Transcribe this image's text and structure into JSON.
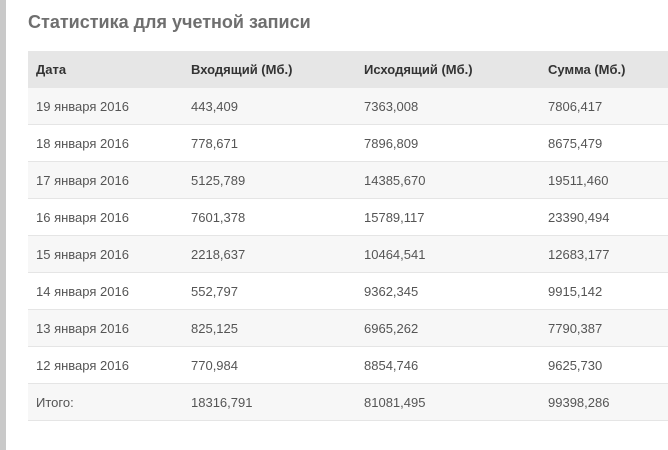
{
  "page": {
    "title": "Статистика для учетной записи"
  },
  "table": {
    "headers": [
      "Дата",
      "Входящий (Мб.)",
      "Исходящий (Мб.)",
      "Сумма (Мб.)"
    ],
    "rows": [
      [
        "19 января 2016",
        "443,409",
        "7363,008",
        "7806,417"
      ],
      [
        "18 января 2016",
        "778,671",
        "7896,809",
        "8675,479"
      ],
      [
        "17 января 2016",
        "5125,789",
        "14385,670",
        "19511,460"
      ],
      [
        "16 января 2016",
        "7601,378",
        "15789,117",
        "23390,494"
      ],
      [
        "15 января 2016",
        "2218,637",
        "10464,541",
        "12683,177"
      ],
      [
        "14 января 2016",
        "552,797",
        "9362,345",
        "9915,142"
      ],
      [
        "13 января 2016",
        "825,125",
        "6965,262",
        "7790,387"
      ],
      [
        "12 января 2016",
        "770,984",
        "8854,746",
        "9625,730"
      ]
    ],
    "total": [
      "Итого:",
      "18316,791",
      "81081,495",
      "99398,286"
    ]
  },
  "colors": {
    "title": "#6f6f6f",
    "header_bg": "#e6e6e6",
    "row_alt_bg": "#f7f7f7",
    "border": "#e5e5e5",
    "left_bar": "#c9c9c9"
  }
}
